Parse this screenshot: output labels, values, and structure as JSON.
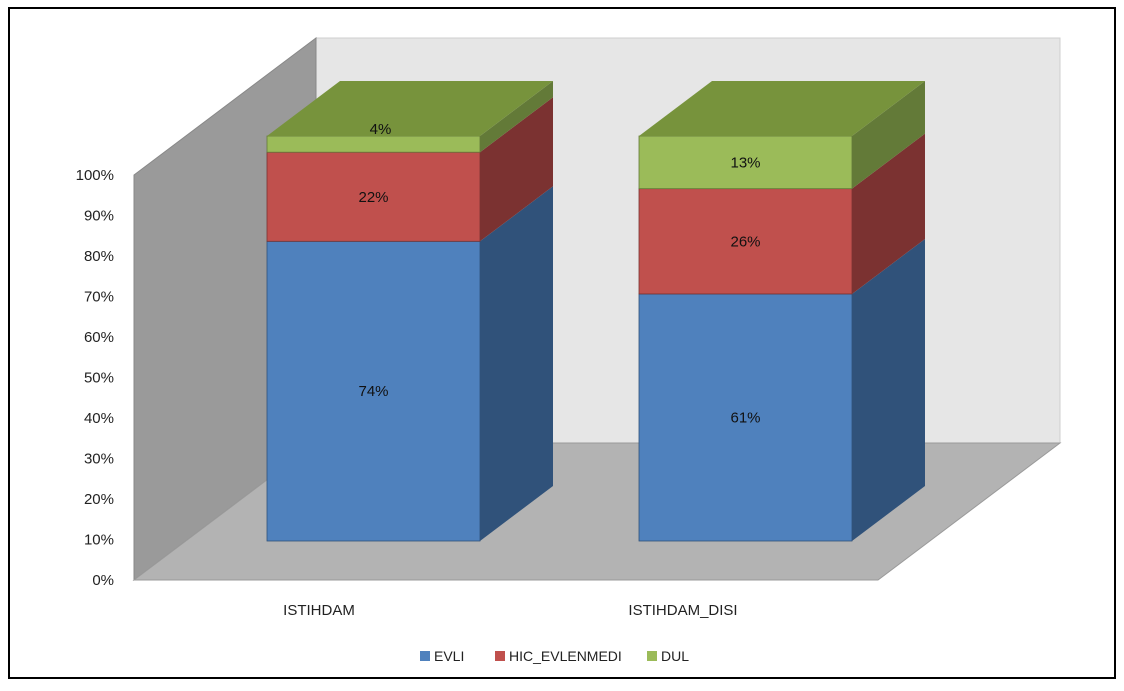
{
  "chart_data": {
    "type": "bar",
    "stacked": true,
    "three_d": true,
    "percent_stacked": true,
    "categories": [
      "ISTIHDAM",
      "ISTIHDAM_DISI"
    ],
    "series": [
      {
        "name": "EVLI",
        "values": [
          74,
          61
        ],
        "labels": [
          "74%",
          "61%"
        ],
        "color": "#4F81BD",
        "side_color": "#30527A",
        "top_color": "#3D6799"
      },
      {
        "name": "HIC_EVLENMEDI",
        "values": [
          22,
          26
        ],
        "labels": [
          "22%",
          "26%"
        ],
        "color": "#C0504D",
        "side_color": "#7B3231",
        "top_color": "#9E3F3C"
      },
      {
        "name": "DUL",
        "values": [
          4,
          13
        ],
        "labels": [
          "4%",
          "13%"
        ],
        "color": "#9BBB59",
        "side_color": "#637A38",
        "top_color": "#77933C"
      }
    ],
    "y_ticks": [
      "0%",
      "10%",
      "20%",
      "30%",
      "40%",
      "50%",
      "60%",
      "70%",
      "80%",
      "90%",
      "100%"
    ],
    "ylim": [
      0,
      100
    ],
    "legend_position": "bottom",
    "grid": false
  }
}
